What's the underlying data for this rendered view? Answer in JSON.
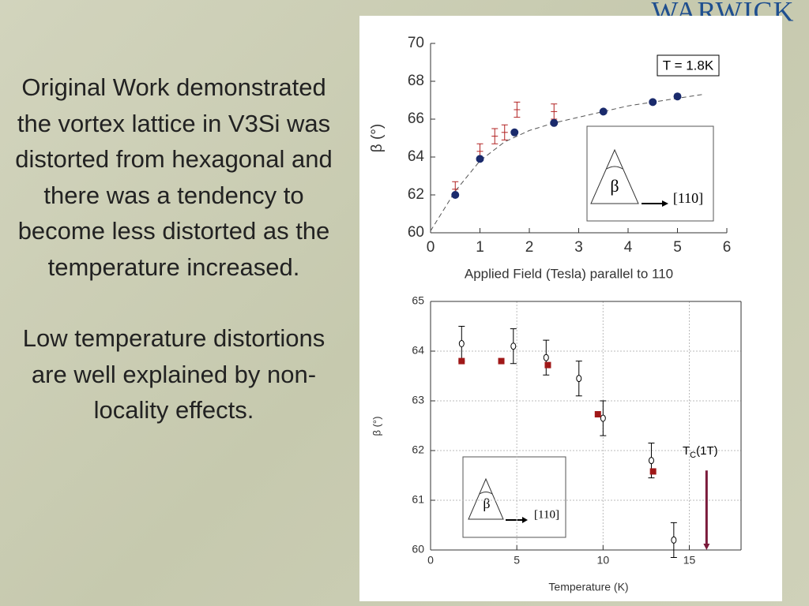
{
  "slide": {
    "logo": "WARWICK",
    "paragraphs": [
      "Original Work demonstrated the vortex lattice in V3Si was distorted from hexagonal and there was a tendency to become less distorted as the temperature increased.",
      "Low temperature distortions are well explained by non-locality effects."
    ]
  },
  "chart_data": [
    {
      "type": "scatter",
      "y_label": "β (°)",
      "x_label": "Applied Field (Tesla) parallel to 110",
      "annotation": "T = 1.8K",
      "inset_labels": [
        "β",
        "[110]"
      ],
      "xlim": [
        0,
        6
      ],
      "xticks": [
        0,
        1,
        2,
        3,
        4,
        5,
        6
      ],
      "ylim": [
        60,
        70
      ],
      "yticks": [
        60,
        62,
        64,
        66,
        68,
        70
      ],
      "grid": false,
      "series": [
        {
          "color": "#555555",
          "marker": "dashed-line",
          "x": [
            0,
            0.5,
            1,
            1.5,
            2,
            2.5,
            3,
            3.5,
            4,
            4.5,
            5,
            5.5
          ],
          "values": [
            60.1,
            62.2,
            63.8,
            64.8,
            65.4,
            65.8,
            66.1,
            66.4,
            66.7,
            66.9,
            67.1,
            67.3
          ]
        },
        {
          "color": "#b22222",
          "marker": "error-bar",
          "x": [
            0.5,
            1,
            1.3,
            1.5,
            1.75,
            2.5
          ],
          "values": [
            62.3,
            64.3,
            65.1,
            65.3,
            66.5,
            66.4
          ],
          "errors": [
            0.4,
            0.4,
            0.4,
            0.4,
            0.4,
            0.4
          ]
        },
        {
          "color": "#1a2a6c",
          "marker": "filled-circle",
          "x": [
            0.5,
            1,
            1.7,
            2.5,
            3.5,
            4.5,
            5
          ],
          "values": [
            62,
            63.9,
            65.3,
            65.8,
            66.4,
            66.9,
            67.2
          ]
        }
      ]
    },
    {
      "type": "scatter",
      "y_label": "β (°)",
      "x_label": "Temperature (K)",
      "inset_labels": [
        "β",
        "[110]"
      ],
      "tc_label": {
        "main": "T",
        "sub": "C",
        "rest": "(1T)"
      },
      "arrow": {
        "x": 16,
        "y": [
          61.6,
          60
        ],
        "color": "#7a1a3a"
      },
      "xlim": [
        0,
        18
      ],
      "xticks": [
        0,
        5,
        10,
        15
      ],
      "ylim": [
        60,
        65
      ],
      "yticks": [
        60,
        61,
        62,
        63,
        64,
        65
      ],
      "grid": true,
      "series": [
        {
          "color": "#000000",
          "marker": "open-circle-error",
          "x": [
            1.8,
            4.8,
            6.7,
            8.6,
            10,
            12.8,
            14.1
          ],
          "values": [
            64.15,
            64.1,
            63.87,
            63.45,
            62.65,
            61.8,
            60.2
          ],
          "errors": [
            0.35,
            0.35,
            0.35,
            0.35,
            0.35,
            0.35,
            0.35
          ]
        },
        {
          "color": "#a01818",
          "marker": "filled-square",
          "x": [
            1.8,
            4.1,
            6.8,
            9.7,
            12.9
          ],
          "values": [
            63.8,
            63.8,
            63.72,
            62.73,
            61.58
          ]
        }
      ]
    }
  ]
}
